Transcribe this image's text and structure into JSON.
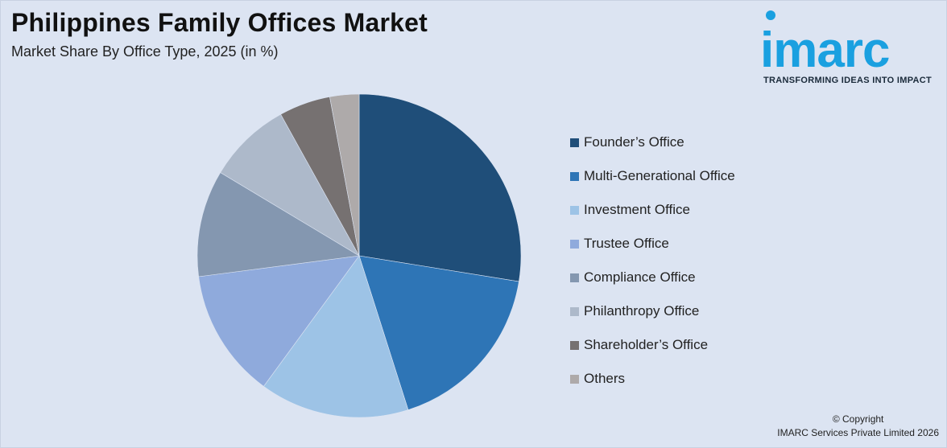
{
  "header": {
    "title": "Philippines Family Offices Market",
    "subtitle": "Market Share By Office Type, 2025 (in %)"
  },
  "logo": {
    "word": "imarc",
    "tagline": "TRANSFORMING IDEAS INTO IMPACT",
    "color": "#1aa0e0"
  },
  "footer": {
    "copyright": "© Copyright",
    "company": "IMARC Services Private Limited 2026"
  },
  "chart_data": {
    "type": "pie",
    "title": "Philippines Family Offices Market",
    "subtitle": "Market Share By Office Type, 2025 (in %)",
    "legend_position": "right",
    "slices": [
      {
        "label": "Founder’s Office",
        "value": 28.4,
        "color": "#1f4e79"
      },
      {
        "label": "Multi-Generational Office",
        "value": 18.1,
        "color": "#2e75b6"
      },
      {
        "label": "Investment Office",
        "value": 15.4,
        "color": "#9dc3e6"
      },
      {
        "label": "Trustee Office",
        "value": 13.3,
        "color": "#8faadc"
      },
      {
        "label": "Compliance Office",
        "value": 11.0,
        "color": "#8497b0"
      },
      {
        "label": "Philanthropy Office",
        "value": 8.6,
        "color": "#adb9ca"
      },
      {
        "label": "Shareholder’s Office",
        "value": 5.3,
        "color": "#767171"
      },
      {
        "label": "Others",
        "value": 3.0,
        "color": "#aeaaaa"
      }
    ]
  }
}
